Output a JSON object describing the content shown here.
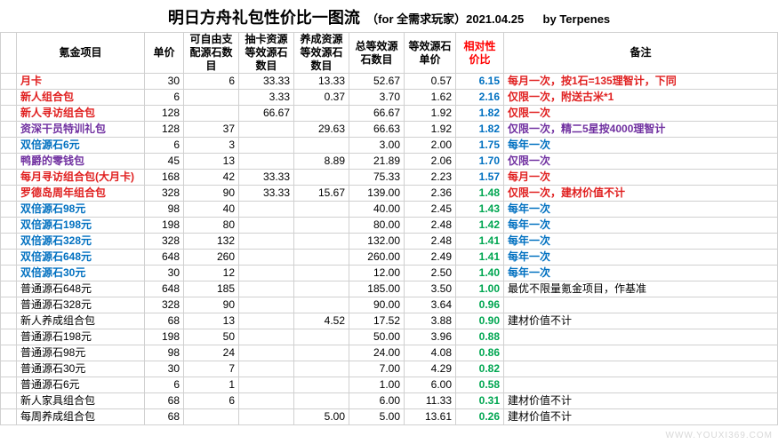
{
  "colors": {
    "red": "#e02020",
    "purple": "#7030a0",
    "blue": "#0070c0",
    "black": "#000000",
    "ratio_header": "#ff0000",
    "green_ratio": "#00a651",
    "watermark": "#d8d8d8"
  },
  "title": {
    "main": "明日方舟礼包性价比一图流",
    "sub": "（for 全需求玩家）2021.04.25",
    "by": "by Terpenes"
  },
  "headers": {
    "name": "氪金项目",
    "price": "单价",
    "free": "可自由支配源石数目",
    "draw": "抽卡资源等效源石数目",
    "grow": "养成资源等效源石数目",
    "total": "总等效源石数目",
    "equiv": "等效源石单价",
    "ratio": "相对性价比",
    "note": "备注"
  },
  "rows": [
    {
      "name": "月卡",
      "name_color": "red",
      "price": "30",
      "free": "6",
      "draw": "33.33",
      "grow": "13.33",
      "total": "52.67",
      "equiv": "0.57",
      "ratio": "6.15",
      "ratio_color": "blue",
      "note": "每月一次，按1石=135理智计，下同",
      "note_color": "red"
    },
    {
      "name": "新人组合包",
      "name_color": "red",
      "price": "6",
      "free": "",
      "draw": "3.33",
      "grow": "0.37",
      "total": "3.70",
      "equiv": "1.62",
      "ratio": "2.16",
      "ratio_color": "blue",
      "note": "仅限一次，附送古米*1",
      "note_color": "red"
    },
    {
      "name": "新人寻访组合包",
      "name_color": "red",
      "price": "128",
      "free": "",
      "draw": "66.67",
      "grow": "",
      "total": "66.67",
      "equiv": "1.92",
      "ratio": "1.82",
      "ratio_color": "blue",
      "note": "仅限一次",
      "note_color": "red"
    },
    {
      "name": "资深干员特训礼包",
      "name_color": "purple",
      "price": "128",
      "free": "37",
      "draw": "",
      "grow": "29.63",
      "total": "66.63",
      "equiv": "1.92",
      "ratio": "1.82",
      "ratio_color": "blue",
      "note": "仅限一次，精二5星按4000理智计",
      "note_color": "purple"
    },
    {
      "name": "双倍源石6元",
      "name_color": "blue",
      "price": "6",
      "free": "3",
      "draw": "",
      "grow": "",
      "total": "3.00",
      "equiv": "2.00",
      "ratio": "1.75",
      "ratio_color": "blue",
      "note": "每年一次",
      "note_color": "blue"
    },
    {
      "name": "鸭爵的零钱包",
      "name_color": "purple",
      "price": "45",
      "free": "13",
      "draw": "",
      "grow": "8.89",
      "total": "21.89",
      "equiv": "2.06",
      "ratio": "1.70",
      "ratio_color": "blue",
      "note": "仅限一次",
      "note_color": "purple"
    },
    {
      "name": "每月寻访组合包(大月卡)",
      "name_color": "red",
      "price": "168",
      "free": "42",
      "draw": "33.33",
      "grow": "",
      "total": "75.33",
      "equiv": "2.23",
      "ratio": "1.57",
      "ratio_color": "blue",
      "note": "每月一次",
      "note_color": "red"
    },
    {
      "name": "罗德岛周年组合包",
      "name_color": "red",
      "price": "328",
      "free": "90",
      "draw": "33.33",
      "grow": "15.67",
      "total": "139.00",
      "equiv": "2.36",
      "ratio": "1.48",
      "ratio_color": "green_ratio",
      "note": "仅限一次，建材价值不计",
      "note_color": "red"
    },
    {
      "name": "双倍源石98元",
      "name_color": "blue",
      "price": "98",
      "free": "40",
      "draw": "",
      "grow": "",
      "total": "40.00",
      "equiv": "2.45",
      "ratio": "1.43",
      "ratio_color": "green_ratio",
      "note": "每年一次",
      "note_color": "blue"
    },
    {
      "name": "双倍源石198元",
      "name_color": "blue",
      "price": "198",
      "free": "80",
      "draw": "",
      "grow": "",
      "total": "80.00",
      "equiv": "2.48",
      "ratio": "1.42",
      "ratio_color": "green_ratio",
      "note": "每年一次",
      "note_color": "blue"
    },
    {
      "name": "双倍源石328元",
      "name_color": "blue",
      "price": "328",
      "free": "132",
      "draw": "",
      "grow": "",
      "total": "132.00",
      "equiv": "2.48",
      "ratio": "1.41",
      "ratio_color": "green_ratio",
      "note": "每年一次",
      "note_color": "blue"
    },
    {
      "name": "双倍源石648元",
      "name_color": "blue",
      "price": "648",
      "free": "260",
      "draw": "",
      "grow": "",
      "total": "260.00",
      "equiv": "2.49",
      "ratio": "1.41",
      "ratio_color": "green_ratio",
      "note": "每年一次",
      "note_color": "blue"
    },
    {
      "name": "双倍源石30元",
      "name_color": "blue",
      "price": "30",
      "free": "12",
      "draw": "",
      "grow": "",
      "total": "12.00",
      "equiv": "2.50",
      "ratio": "1.40",
      "ratio_color": "green_ratio",
      "note": "每年一次",
      "note_color": "blue"
    },
    {
      "name": "普通源石648元",
      "name_color": "black",
      "price": "648",
      "free": "185",
      "draw": "",
      "grow": "",
      "total": "185.00",
      "equiv": "3.50",
      "ratio": "1.00",
      "ratio_color": "green_ratio",
      "note": "最优不限量氪金项目，作基准",
      "note_color": "black"
    },
    {
      "name": "普通源石328元",
      "name_color": "black",
      "price": "328",
      "free": "90",
      "draw": "",
      "grow": "",
      "total": "90.00",
      "equiv": "3.64",
      "ratio": "0.96",
      "ratio_color": "green_ratio",
      "note": "",
      "note_color": "black"
    },
    {
      "name": "新人养成组合包",
      "name_color": "black",
      "price": "68",
      "free": "13",
      "draw": "",
      "grow": "4.52",
      "total": "17.52",
      "equiv": "3.88",
      "ratio": "0.90",
      "ratio_color": "green_ratio",
      "note": "建材价值不计",
      "note_color": "black"
    },
    {
      "name": "普通源石198元",
      "name_color": "black",
      "price": "198",
      "free": "50",
      "draw": "",
      "grow": "",
      "total": "50.00",
      "equiv": "3.96",
      "ratio": "0.88",
      "ratio_color": "green_ratio",
      "note": "",
      "note_color": "black"
    },
    {
      "name": "普通源石98元",
      "name_color": "black",
      "price": "98",
      "free": "24",
      "draw": "",
      "grow": "",
      "total": "24.00",
      "equiv": "4.08",
      "ratio": "0.86",
      "ratio_color": "green_ratio",
      "note": "",
      "note_color": "black"
    },
    {
      "name": "普通源石30元",
      "name_color": "black",
      "price": "30",
      "free": "7",
      "draw": "",
      "grow": "",
      "total": "7.00",
      "equiv": "4.29",
      "ratio": "0.82",
      "ratio_color": "green_ratio",
      "note": "",
      "note_color": "black"
    },
    {
      "name": "普通源石6元",
      "name_color": "black",
      "price": "6",
      "free": "1",
      "draw": "",
      "grow": "",
      "total": "1.00",
      "equiv": "6.00",
      "ratio": "0.58",
      "ratio_color": "green_ratio",
      "note": "",
      "note_color": "black"
    },
    {
      "name": "新人家具组合包",
      "name_color": "black",
      "price": "68",
      "free": "6",
      "draw": "",
      "grow": "",
      "total": "6.00",
      "equiv": "11.33",
      "ratio": "0.31",
      "ratio_color": "green_ratio",
      "note": "建材价值不计",
      "note_color": "black"
    },
    {
      "name": "每周养成组合包",
      "name_color": "black",
      "price": "68",
      "free": "",
      "draw": "",
      "grow": "5.00",
      "total": "5.00",
      "equiv": "13.61",
      "ratio": "0.26",
      "ratio_color": "green_ratio",
      "note": "建材价值不计",
      "note_color": "black"
    }
  ],
  "watermark": "WWW.YOUXI369.COM"
}
